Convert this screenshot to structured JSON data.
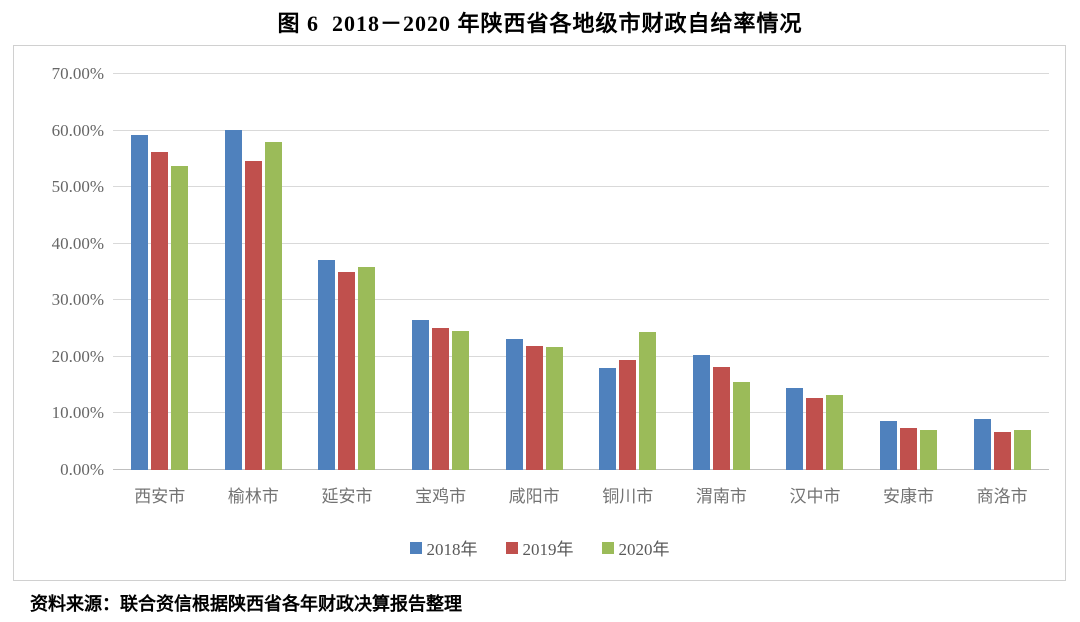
{
  "title": "图 6  2018－2020 年陕西省各地级市财政自给率情况",
  "source": "资料来源：联合资信根据陕西省各年财政决算报告整理",
  "chart_data": {
    "type": "bar",
    "title": "图 6  2018－2020 年陕西省各地级市财政自给率情况",
    "categories": [
      "西安市",
      "榆林市",
      "延安市",
      "宝鸡市",
      "咸阳市",
      "铜川市",
      "渭南市",
      "汉中市",
      "安康市",
      "商洛市"
    ],
    "series": [
      {
        "name": "2018年",
        "color": "#4F81BD",
        "values": [
          59.3,
          60.1,
          37.2,
          26.6,
          23.2,
          18.0,
          20.4,
          14.5,
          8.6,
          9.0
        ]
      },
      {
        "name": "2019年",
        "color": "#C0504D",
        "values": [
          56.3,
          54.6,
          35.0,
          25.1,
          22.0,
          19.5,
          18.2,
          12.7,
          7.5,
          6.8
        ]
      },
      {
        "name": "2020年",
        "color": "#9BBB59",
        "values": [
          53.7,
          57.9,
          35.8,
          24.5,
          21.8,
          24.4,
          15.6,
          13.3,
          7.1,
          7.1
        ]
      }
    ],
    "xlabel": "",
    "ylabel": "",
    "ylim": [
      0,
      70
    ],
    "ytick_step": 10,
    "ytick_labels": [
      "0.00%",
      "10.00%",
      "20.00%",
      "30.00%",
      "40.00%",
      "50.00%",
      "60.00%",
      "70.00%"
    ],
    "grid": true,
    "legend_position": "bottom",
    "gridline_color": "#d9d9d9",
    "axis_text_color": "#666666"
  }
}
